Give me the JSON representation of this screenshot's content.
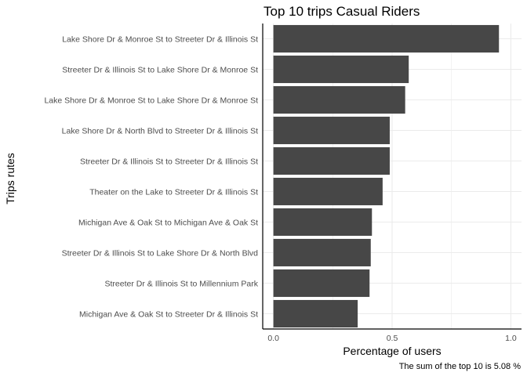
{
  "chart_data": {
    "type": "bar",
    "orientation": "horizontal",
    "title": "Top 10 trips Casual Riders",
    "xlabel": "Percentage of users",
    "ylabel": "Trips rutes",
    "caption": "The sum of the top 10 is 5.08 %",
    "categories": [
      "Lake Shore Dr & Monroe St to Streeter Dr & Illinois St",
      "Streeter Dr & Illinois St to Lake Shore Dr & Monroe St",
      "Lake Shore Dr & Monroe St to Lake Shore Dr & Monroe St",
      "Lake Shore Dr & North Blvd to Streeter Dr & Illinois St",
      "Streeter Dr & Illinois St to Streeter Dr & Illinois St",
      "Theater on the Lake to Streeter Dr & Illinois St",
      "Michigan Ave & Oak St to Michigan Ave & Oak St",
      "Streeter Dr & Illinois St to Lake Shore Dr & North Blvd",
      "Streeter Dr & Illinois St to Millennium Park",
      "Michigan Ave & Oak St to Streeter Dr & Illinois St"
    ],
    "values": [
      0.95,
      0.57,
      0.555,
      0.49,
      0.49,
      0.46,
      0.415,
      0.41,
      0.405,
      0.355
    ],
    "xlim": [
      -0.045,
      1.045
    ],
    "xticks": [
      0.0,
      0.5,
      1.0
    ],
    "xtick_labels": [
      "0.0",
      "0.5",
      "1.0"
    ],
    "grid": true,
    "bar_color": "#474747",
    "grid_color": "#ebebeb"
  }
}
